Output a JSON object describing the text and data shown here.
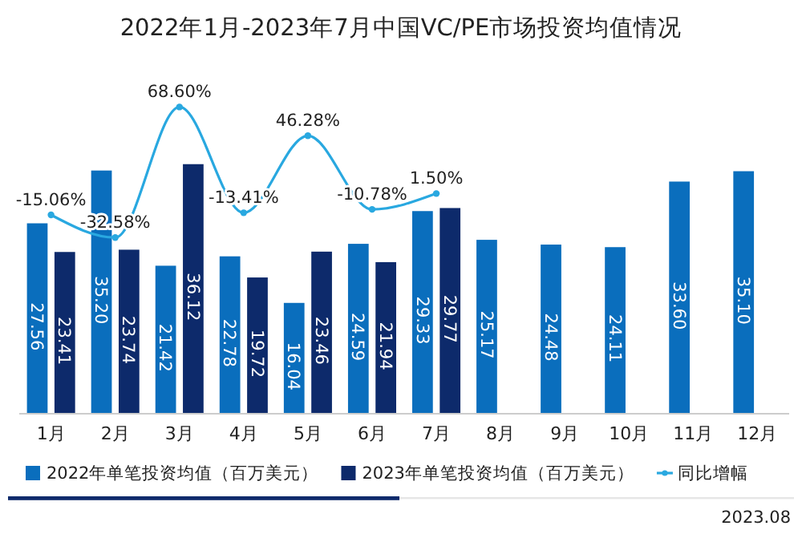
{
  "chart_data": {
    "type": "bar",
    "title": "2022年1月-2023年7月中国VC/PE市场投资均值情况",
    "categories": [
      "1月",
      "2月",
      "3月",
      "4月",
      "5月",
      "6月",
      "7月",
      "8月",
      "9月",
      "10月",
      "11月",
      "12月"
    ],
    "series": [
      {
        "name": "2022年单笔投资均值（百万美元）",
        "color": "#0a6ebd",
        "value_labels": [
          "27.56",
          "35.20",
          "21.42",
          "22.78",
          "16.04",
          "24.59",
          "29.33",
          "25.17",
          "24.48",
          "24.11",
          "33.60",
          "35.10"
        ],
        "values": [
          27.56,
          35.2,
          21.42,
          22.78,
          16.04,
          24.59,
          29.33,
          25.17,
          24.48,
          24.11,
          33.6,
          35.1
        ]
      },
      {
        "name": "2023年单笔投资均值（百万美元）",
        "color": "#0d2a6b",
        "values": [
          23.41,
          23.74,
          36.12,
          19.72,
          23.46,
          21.94,
          29.77,
          null,
          null,
          null,
          null,
          null
        ]
      },
      {
        "name": "同比增幅",
        "type": "line",
        "axis": "y2",
        "color": "#29a8e0",
        "value_labels": [
          "-15.06%",
          "-32.58%",
          "68.60%",
          "-13.41%",
          "46.28%",
          "-10.78%",
          "1.50%",
          null,
          null,
          null,
          null,
          null
        ],
        "values": [
          -15.06,
          -32.58,
          68.6,
          -13.41,
          46.28,
          -10.78,
          1.5,
          null,
          null,
          null,
          null,
          null
        ]
      }
    ],
    "tick_labels": "x",
    "data_labels": true,
    "legend": "bottom",
    "marker": "circle",
    "grid": false,
    "annotations": [
      "2023.08"
    ]
  }
}
